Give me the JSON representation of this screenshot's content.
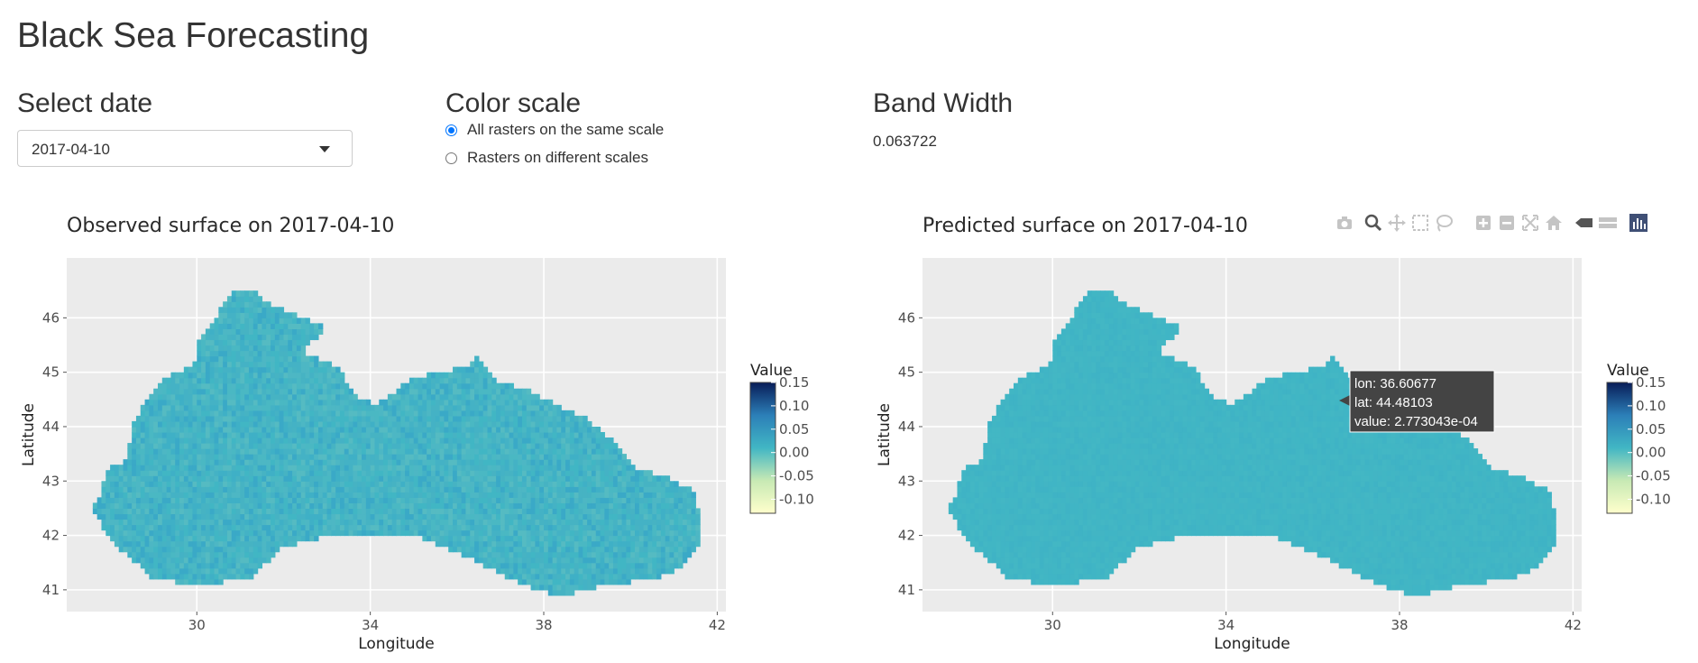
{
  "app": {
    "title": "Black Sea Forecasting"
  },
  "controls": {
    "date_label": "Select date",
    "date_value": "2017-04-10",
    "scale_label": "Color scale",
    "scale_options": [
      {
        "label": "All rasters on the same scale",
        "checked": true
      },
      {
        "label": "Rasters on different scales",
        "checked": false
      }
    ],
    "bandwidth_label": "Band Width",
    "bandwidth_value": "0.063722"
  },
  "plots": {
    "observed_title": "Observed surface on 2017-04-10",
    "predicted_title": "Predicted surface on 2017-04-10",
    "xlabel": "Longitude",
    "ylabel": "Latitude",
    "legend_title": "Value",
    "x_ticks": [
      "30",
      "34",
      "38",
      "42"
    ],
    "y_ticks": [
      "41",
      "42",
      "43",
      "44",
      "45",
      "46"
    ],
    "legend_ticks": [
      "0.15",
      "0.10",
      "0.05",
      "0.00",
      "-0.05",
      "-0.10"
    ]
  },
  "tooltip": {
    "lines": [
      "lon: 36.60677",
      "lat: 44.48103",
      "value:  2.773043e-04"
    ]
  },
  "modebar": {
    "buttons": [
      "camera-icon",
      "zoom-icon",
      "pan-icon",
      "box-select-icon",
      "lasso-icon",
      "zoom-in-icon",
      "zoom-out-icon",
      "autoscale-icon",
      "reset-axes-icon",
      "spike-lines-icon",
      "compare-hover-icon",
      "plotly-logo-icon"
    ]
  },
  "chart_data": [
    {
      "type": "heatmap",
      "title": "Observed surface on 2017-04-10",
      "xlabel": "Longitude",
      "ylabel": "Latitude",
      "xlim": [
        27,
        42.2
      ],
      "ylim": [
        40.6,
        47.1
      ],
      "colorbar": {
        "title": "Value",
        "range": [
          -0.13,
          0.15
        ],
        "ticks": [
          0.15,
          0.1,
          0.05,
          0.0,
          -0.05,
          -0.1
        ]
      },
      "value_range_observed": [
        -0.01,
        0.03
      ]
    },
    {
      "type": "heatmap",
      "title": "Predicted surface on 2017-04-10",
      "xlabel": "Longitude",
      "ylabel": "Latitude",
      "xlim": [
        27,
        42.2
      ],
      "ylim": [
        40.6,
        47.1
      ],
      "colorbar": {
        "title": "Value",
        "range": [
          -0.13,
          0.15
        ],
        "ticks": [
          0.15,
          0.1,
          0.05,
          0.0,
          -0.05,
          -0.1
        ]
      },
      "hover_point": {
        "lon": 36.60677,
        "lat": 44.48103,
        "value": 0.0002773043
      }
    }
  ],
  "colors": {
    "panel_bg": "#ebebeb",
    "grid": "#ffffff",
    "sea_base": "#41b6c4",
    "tooltip_bg": "#444444"
  }
}
